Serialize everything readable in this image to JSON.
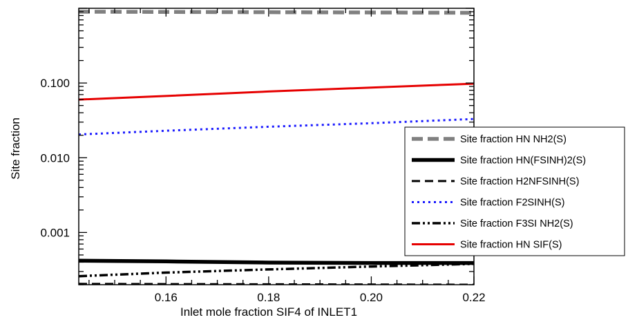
{
  "chart_data": {
    "type": "line",
    "title": "",
    "xlabel": "Inlet mole fraction SIF4 of INLET1",
    "ylabel": "Site fraction",
    "xlim": [
      0.143,
      0.22
    ],
    "ylim": [
      0.0002,
      1.0
    ],
    "yscale": "log",
    "grid": false,
    "legend_position": "right",
    "x_ticks": [
      0.16,
      0.18,
      0.2,
      0.22
    ],
    "x_tick_labels": [
      "0.16",
      "0.18",
      "0.20",
      "0.22"
    ],
    "y_ticks": [
      0.001,
      0.01,
      0.1
    ],
    "y_tick_labels": [
      "0.001",
      "0.010",
      "0.100"
    ],
    "series": [
      {
        "name": "Site fraction HN NH2(S)",
        "color": "#808080",
        "style": "dashed-thick",
        "x": [
          0.143,
          0.22
        ],
        "y": [
          0.9,
          0.87
        ]
      },
      {
        "name": "Site fraction HN(FSINH)2(S)",
        "color": "#000000",
        "style": "solid-thick",
        "x": [
          0.143,
          0.16,
          0.18,
          0.2,
          0.22
        ],
        "y": [
          0.00042,
          0.00041,
          0.000395,
          0.00039,
          0.00039
        ]
      },
      {
        "name": "Site fraction H2NFSINH(S)",
        "color": "#000000",
        "style": "dashed",
        "x": [
          0.143,
          0.22
        ],
        "y": [
          0.000205,
          0.0002
        ]
      },
      {
        "name": "Site fraction F2SINH(S)",
        "color": "#1a1aff",
        "style": "dotted",
        "x": [
          0.143,
          0.16,
          0.18,
          0.2,
          0.22
        ],
        "y": [
          0.0205,
          0.023,
          0.026,
          0.029,
          0.033
        ]
      },
      {
        "name": "Site fraction F3SI NH2(S)",
        "color": "#000000",
        "style": "dash-dot-dot",
        "x": [
          0.143,
          0.16,
          0.18,
          0.2,
          0.22
        ],
        "y": [
          0.00026,
          0.00029,
          0.00032,
          0.00035,
          0.00038
        ]
      },
      {
        "name": "Site fraction HN SIF(S)",
        "color": "#e60000",
        "style": "solid",
        "x": [
          0.143,
          0.16,
          0.18,
          0.2,
          0.22
        ],
        "y": [
          0.06,
          0.067,
          0.077,
          0.087,
          0.098
        ]
      }
    ]
  }
}
